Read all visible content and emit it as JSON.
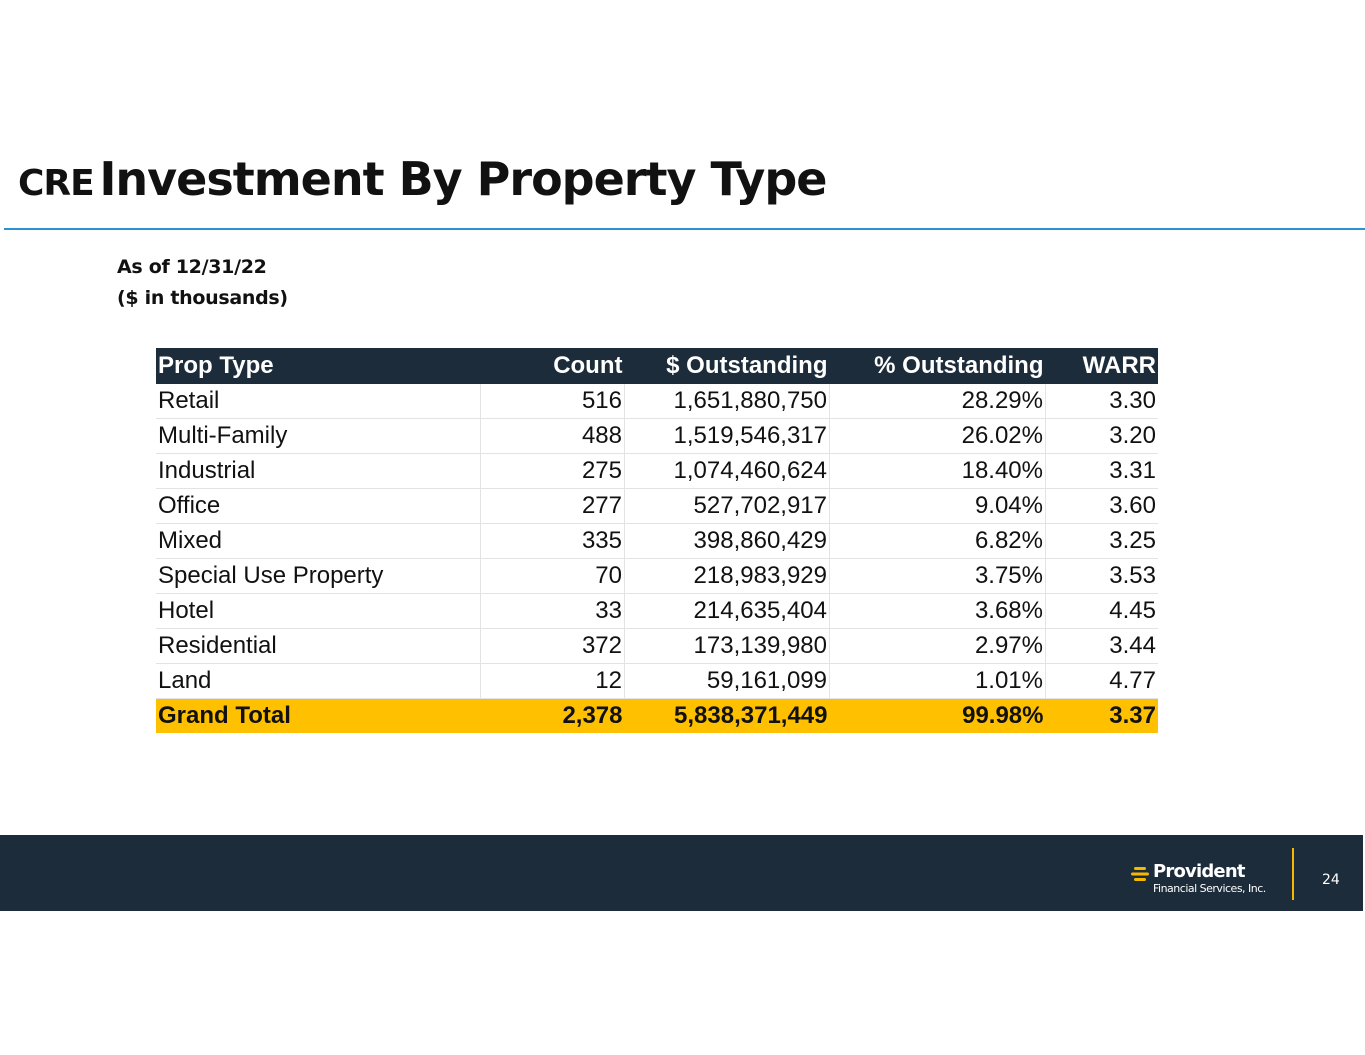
{
  "title": {
    "prefix": "CRE",
    "main": "Investment By Property Type"
  },
  "subtitle": {
    "line1": "As of 12/31/22",
    "line2": "($ in thousands)"
  },
  "table": {
    "headers": [
      "Prop Type",
      "Count",
      "$ Outstanding",
      "% Outstanding",
      "WARR"
    ],
    "rows": [
      [
        "Retail",
        "516",
        "1,651,880,750",
        "28.29%",
        "3.30"
      ],
      [
        "Multi-Family",
        "488",
        "1,519,546,317",
        "26.02%",
        "3.20"
      ],
      [
        "Industrial",
        "275",
        "1,074,460,624",
        "18.40%",
        "3.31"
      ],
      [
        "Office",
        "277",
        "527,702,917",
        "9.04%",
        "3.60"
      ],
      [
        "Mixed",
        "335",
        "398,860,429",
        "6.82%",
        "3.25"
      ],
      [
        "Special Use Property",
        "70",
        "218,983,929",
        "3.75%",
        "3.53"
      ],
      [
        "Hotel",
        "33",
        "214,635,404",
        "3.68%",
        "4.45"
      ],
      [
        "Residential",
        "372",
        "173,139,980",
        "2.97%",
        "3.44"
      ],
      [
        "Land",
        "12",
        "59,161,099",
        "1.01%",
        "4.77"
      ]
    ],
    "total": [
      "Grand Total",
      "2,378",
      "5,838,371,449",
      "99.98%",
      "3.37"
    ]
  },
  "footer": {
    "logo_name": "Provident",
    "logo_sub": "Financial Services, Inc.",
    "page_number": "24"
  },
  "colors": {
    "header_bg": "#1c2c3a",
    "total_bg": "#ffc000",
    "rule": "#2a93d0",
    "logo_accent": "#f5b800"
  },
  "icons": {
    "logo": "provident-logo-icon"
  }
}
